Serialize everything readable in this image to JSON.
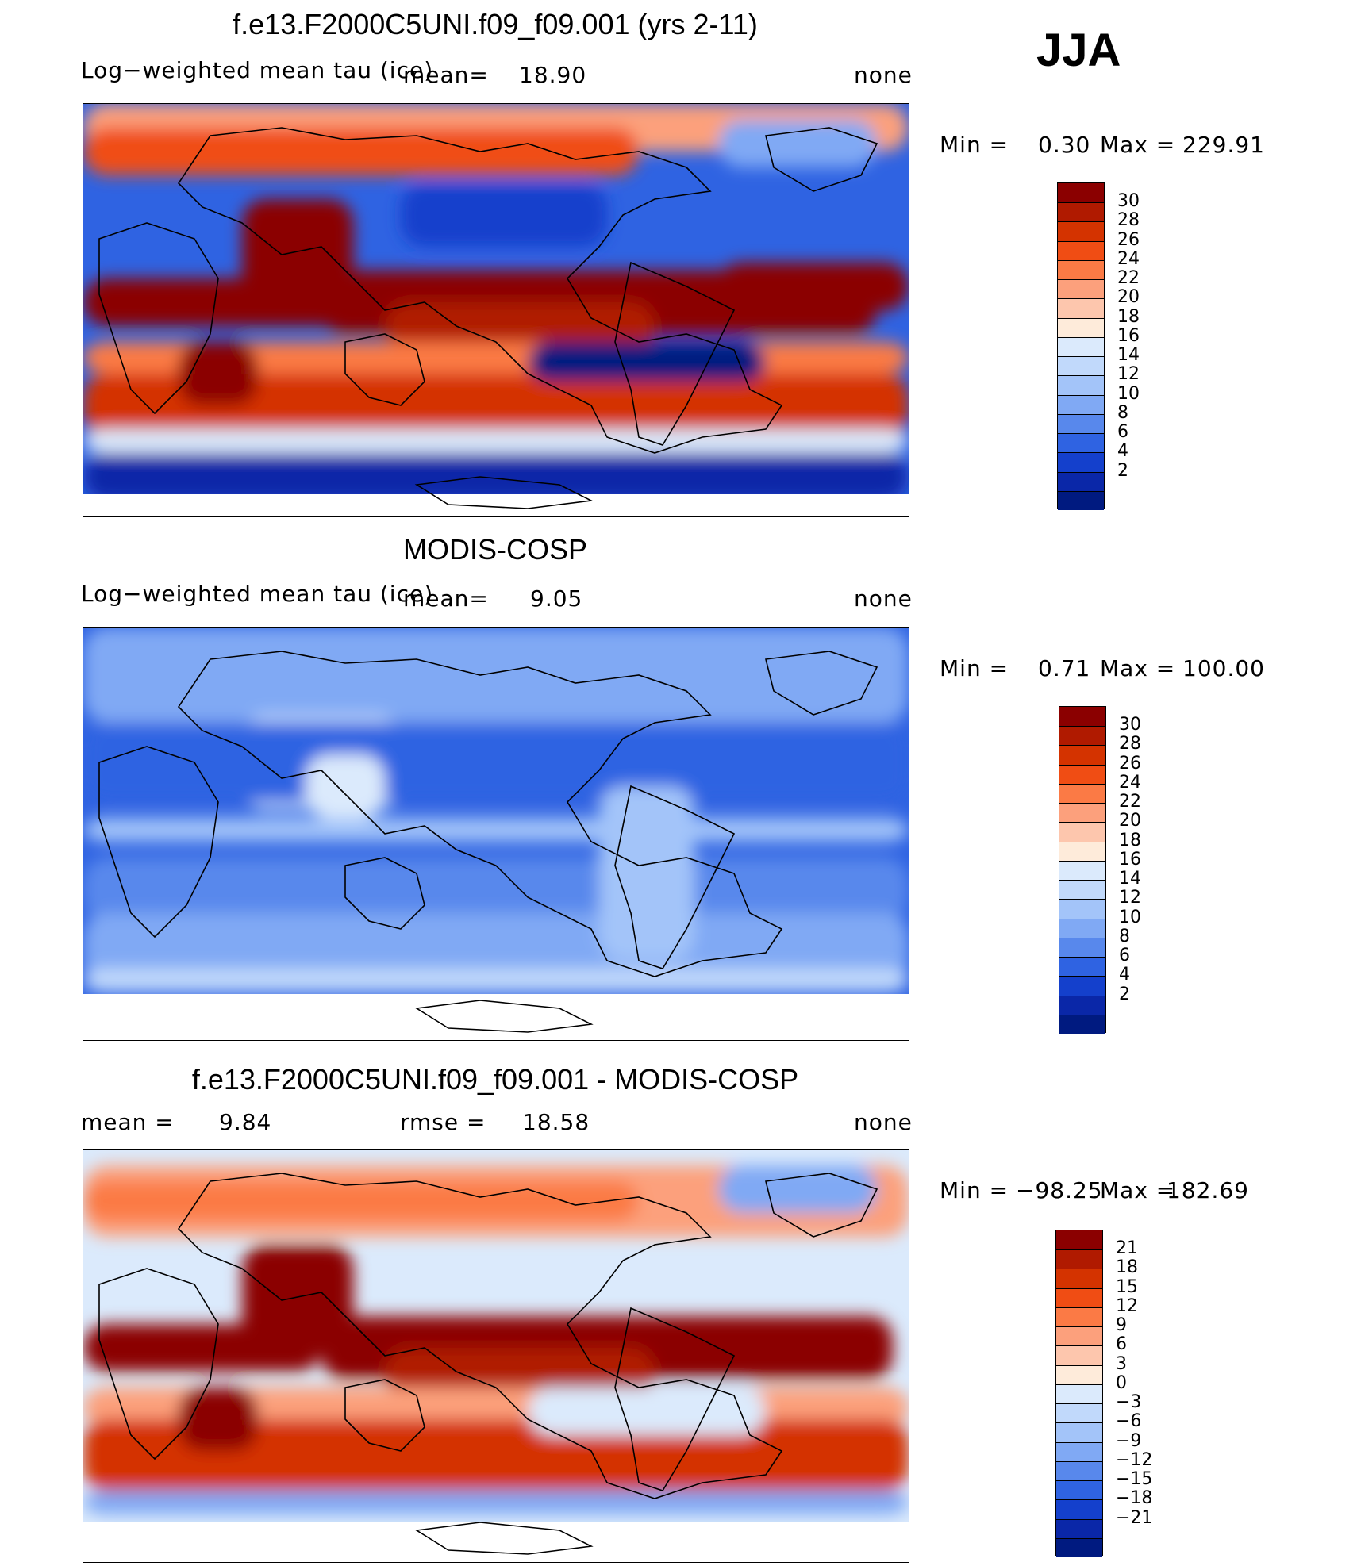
{
  "season": "JJA",
  "panels": [
    {
      "title": "f.e13.F2000C5UNI.f09_f09.001 (yrs 2-11)",
      "left_label": "Log−weighted mean tau (ice)",
      "mean_label": "mean=",
      "mean_value": "18.90",
      "right_label": "none",
      "min_label": "Min =",
      "min_value": "0.30",
      "max_label": "Max =",
      "max_value": "229.91",
      "map_style": "model",
      "colorbar": {
        "colors": [
          "#8b0000",
          "#b01a00",
          "#d43300",
          "#f04d14",
          "#fb7a45",
          "#fca07c",
          "#fdc6ad",
          "#feebda",
          "#dbeafc",
          "#c1d9fb",
          "#a3c4f9",
          "#80a9f4",
          "#5888ec",
          "#2f63e2",
          "#1440cc",
          "#0a27a8",
          "#001a80"
        ],
        "labels": [
          "30",
          "28",
          "26",
          "24",
          "22",
          "20",
          "18",
          "16",
          "14",
          "12",
          "10",
          "8",
          "6",
          "4",
          "2"
        ]
      }
    },
    {
      "title": "MODIS-COSP",
      "left_label": "Log−weighted mean tau (ice)",
      "mean_label": "mean=",
      "mean_value": "9.05",
      "right_label": "none",
      "min_label": "Min =",
      "min_value": "0.71",
      "max_label": "Max =",
      "max_value": "100.00",
      "map_style": "obs",
      "colorbar": {
        "colors": [
          "#8b0000",
          "#b01a00",
          "#d43300",
          "#f04d14",
          "#fb7a45",
          "#fca07c",
          "#fdc6ad",
          "#feebda",
          "#dbeafc",
          "#c1d9fb",
          "#a3c4f9",
          "#80a9f4",
          "#5888ec",
          "#2f63e2",
          "#1440cc",
          "#0a27a8",
          "#001a80"
        ],
        "labels": [
          "30",
          "28",
          "26",
          "24",
          "22",
          "20",
          "18",
          "16",
          "14",
          "12",
          "10",
          "8",
          "6",
          "4",
          "2"
        ]
      }
    },
    {
      "title": "f.e13.F2000C5UNI.f09_f09.001 - MODIS-COSP",
      "left_label": "mean =",
      "left_value": "9.84",
      "rmse_label": "rmse =",
      "rmse_value": "18.58",
      "right_label": "none",
      "min_label": "Min =",
      "min_value": "−98.25",
      "max_label": "Max =",
      "max_value": "182.69",
      "map_style": "diff",
      "colorbar": {
        "colors": [
          "#8b0000",
          "#b01a00",
          "#d43300",
          "#f04d14",
          "#fb7a45",
          "#fca07c",
          "#fdc6ad",
          "#feebda",
          "#dbeafc",
          "#c1d9fb",
          "#a3c4f9",
          "#80a9f4",
          "#5888ec",
          "#2f63e2",
          "#1440cc",
          "#0a27a8",
          "#001a80"
        ],
        "labels": [
          "21",
          "18",
          "15",
          "12",
          "9",
          "6",
          "3",
          "0",
          "−3",
          "−6",
          "−9",
          "−12",
          "−15",
          "−18",
          "−21"
        ]
      }
    }
  ],
  "chart_data": [
    {
      "type": "heatmap",
      "title": "f.e13.F2000C5UNI.f09_f09.001 (yrs 2-11)",
      "subtitle": "Log−weighted mean tau (ice)",
      "mean": 18.9,
      "min": 0.3,
      "max": 229.91,
      "units": "none",
      "color_levels": [
        2,
        4,
        6,
        8,
        10,
        12,
        14,
        16,
        18,
        20,
        22,
        24,
        26,
        28,
        30
      ]
    },
    {
      "type": "heatmap",
      "title": "MODIS-COSP",
      "subtitle": "Log−weighted mean tau (ice)",
      "mean": 9.05,
      "min": 0.71,
      "max": 100.0,
      "units": "none",
      "color_levels": [
        2,
        4,
        6,
        8,
        10,
        12,
        14,
        16,
        18,
        20,
        22,
        24,
        26,
        28,
        30
      ]
    },
    {
      "type": "heatmap",
      "title": "f.e13.F2000C5UNI.f09_f09.001 - MODIS-COSP",
      "mean": 9.84,
      "rmse": 18.58,
      "min": -98.25,
      "max": 182.69,
      "units": "none",
      "color_levels": [
        -21,
        -18,
        -15,
        -12,
        -9,
        -6,
        -3,
        0,
        3,
        6,
        9,
        12,
        15,
        18,
        21
      ]
    }
  ]
}
